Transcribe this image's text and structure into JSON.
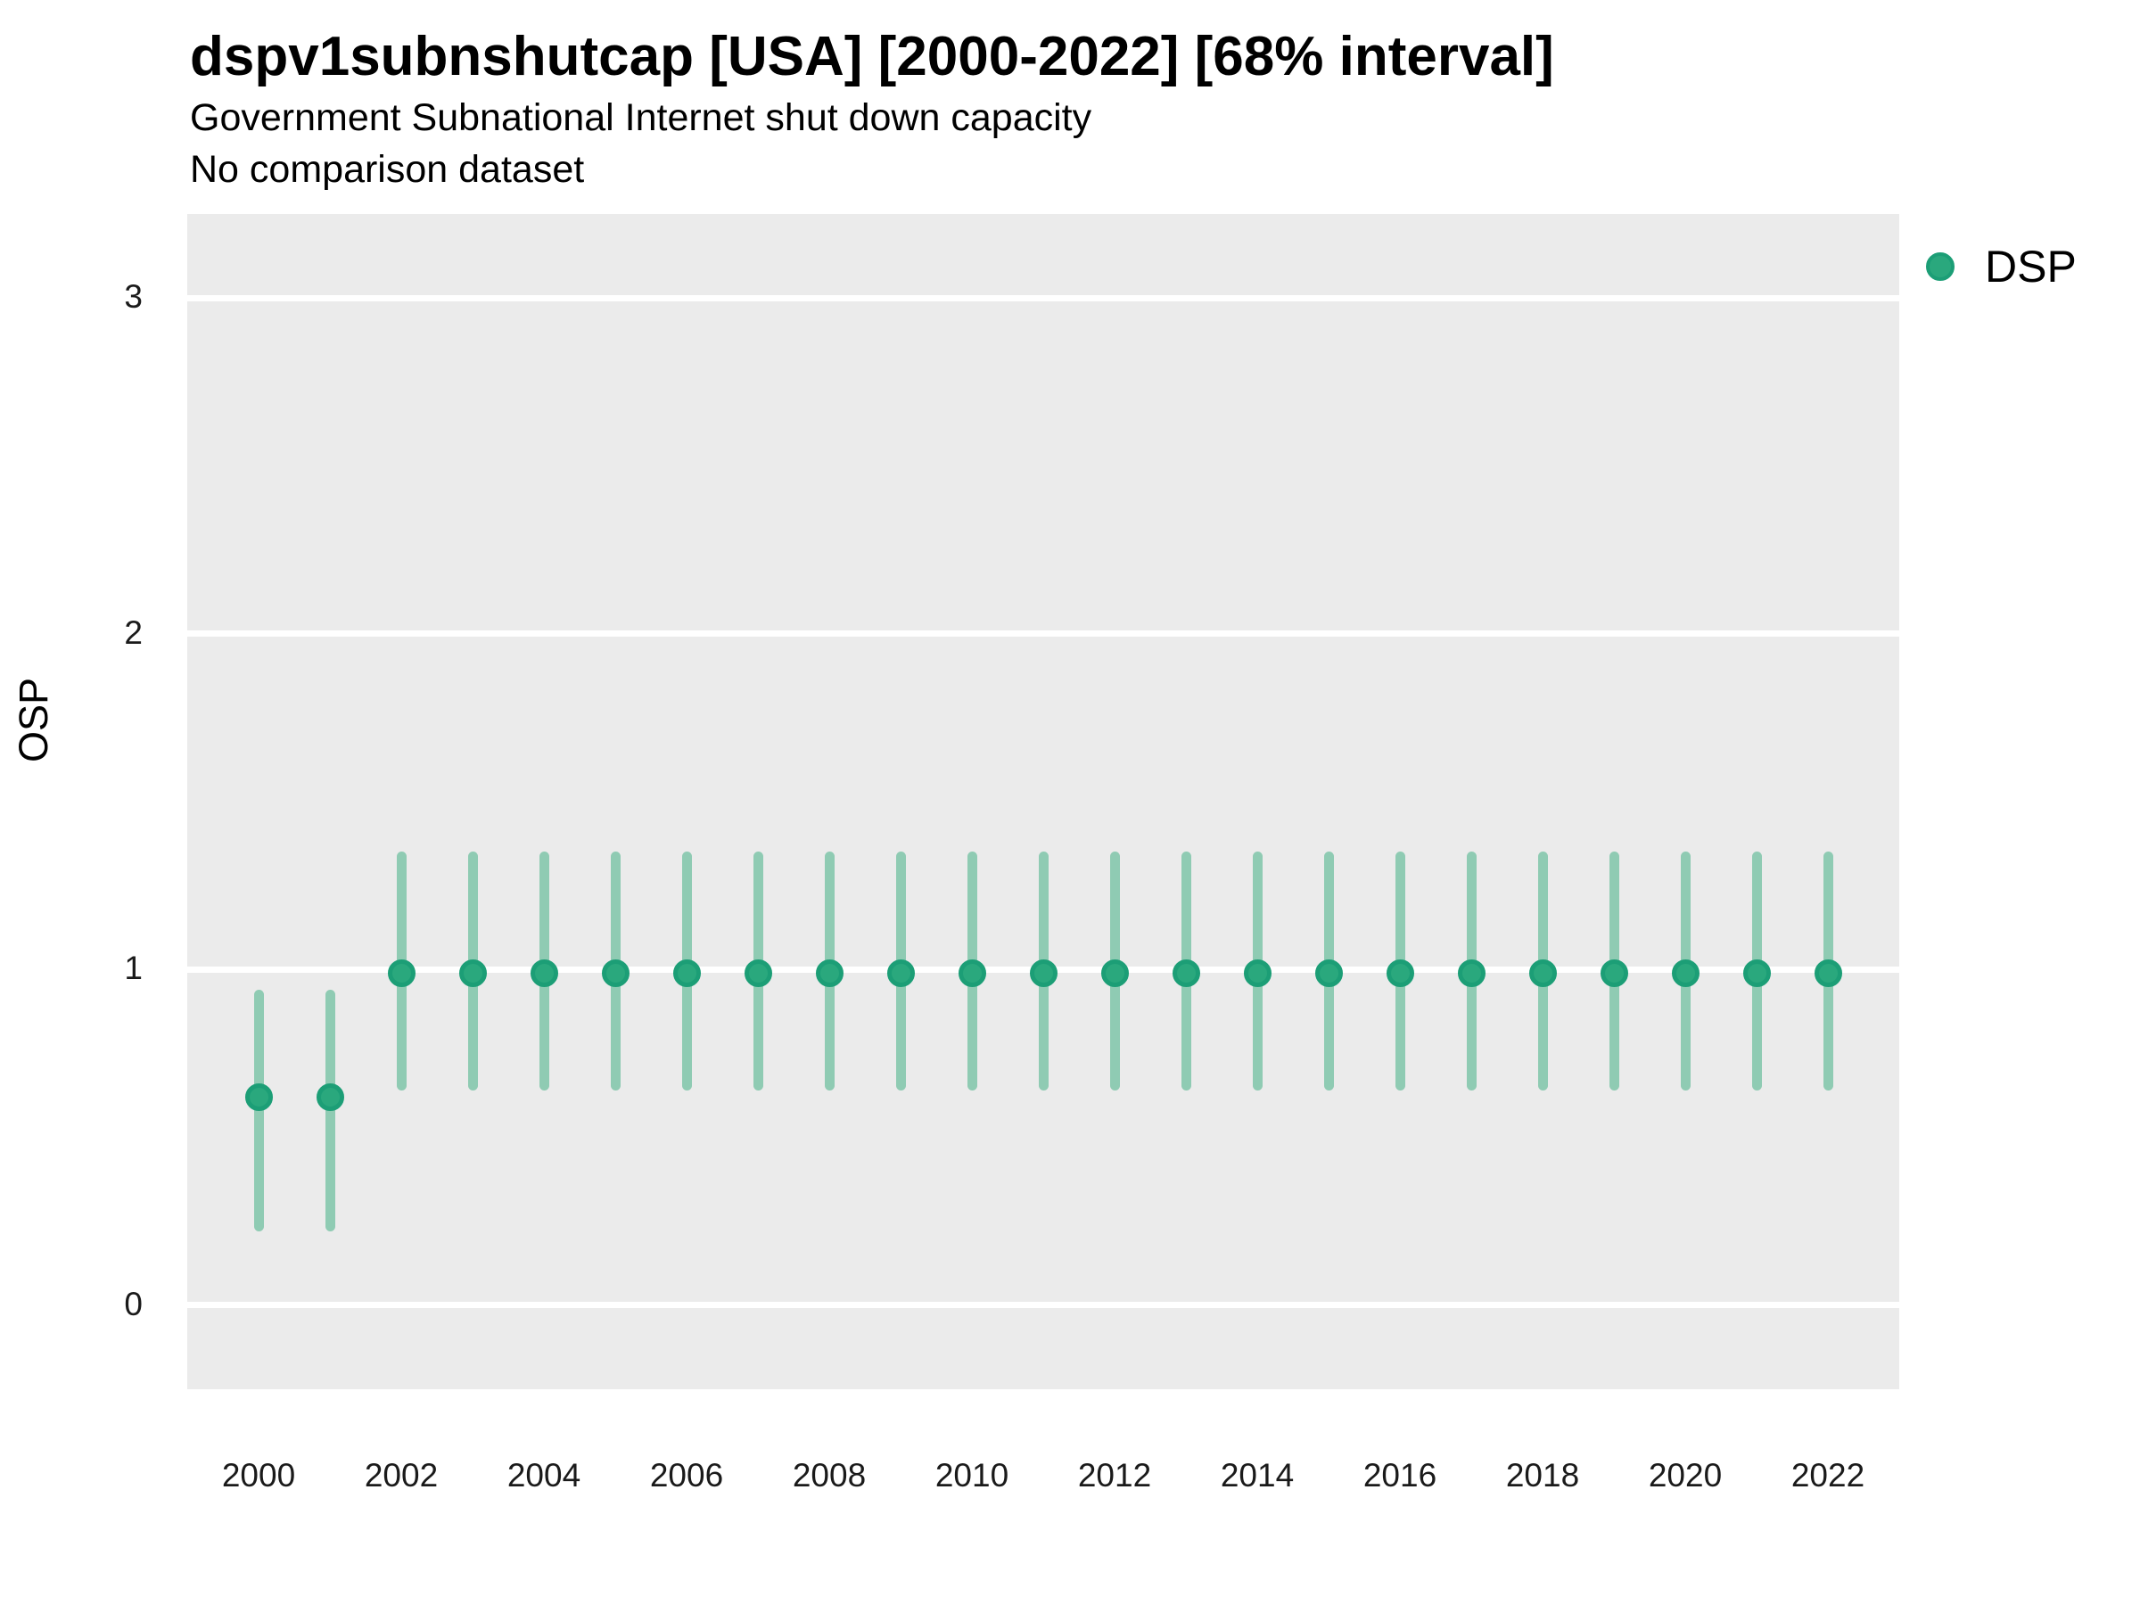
{
  "header": {
    "title": "dspv1subnshutcap [USA] [2000-2022] [68% interval]",
    "subtitle": "Government Subnational Internet shut down capacity",
    "note": "No comparison dataset"
  },
  "colors": {
    "panel_bg": "#EBEBEB",
    "gridline": "#FFFFFF",
    "interval_bar": "#8FCBB3",
    "point_fill": "#2AA87D",
    "point_stroke": "#1C9E76"
  },
  "legend": {
    "label": "DSP",
    "position": "right"
  },
  "chart_data": {
    "type": "scatter",
    "subtype": "pointrange",
    "title": "dspv1subnshutcap [USA] [2000-2022] [68% interval]",
    "subtitle": "Government Subnational Internet shut down capacity",
    "note": "No comparison dataset",
    "interval": "68%",
    "xlabel": "",
    "ylabel": "OSP",
    "ylim": [
      0,
      3
    ],
    "yticks": [
      0,
      1,
      2,
      3
    ],
    "xticks": [
      2000,
      2002,
      2004,
      2006,
      2008,
      2010,
      2012,
      2014,
      2016,
      2018,
      2020,
      2022
    ],
    "grid": "horizontal-only",
    "legend_position": "right",
    "series": [
      {
        "name": "DSP",
        "points": [
          {
            "year": 2000,
            "est": 0.62,
            "lo": 0.22,
            "hi": 0.94
          },
          {
            "year": 2001,
            "est": 0.62,
            "lo": 0.22,
            "hi": 0.94
          },
          {
            "year": 2002,
            "est": 0.99,
            "lo": 0.64,
            "hi": 1.35
          },
          {
            "year": 2003,
            "est": 0.99,
            "lo": 0.64,
            "hi": 1.35
          },
          {
            "year": 2004,
            "est": 0.99,
            "lo": 0.64,
            "hi": 1.35
          },
          {
            "year": 2005,
            "est": 0.99,
            "lo": 0.64,
            "hi": 1.35
          },
          {
            "year": 2006,
            "est": 0.99,
            "lo": 0.64,
            "hi": 1.35
          },
          {
            "year": 2007,
            "est": 0.99,
            "lo": 0.64,
            "hi": 1.35
          },
          {
            "year": 2008,
            "est": 0.99,
            "lo": 0.64,
            "hi": 1.35
          },
          {
            "year": 2009,
            "est": 0.99,
            "lo": 0.64,
            "hi": 1.35
          },
          {
            "year": 2010,
            "est": 0.99,
            "lo": 0.64,
            "hi": 1.35
          },
          {
            "year": 2011,
            "est": 0.99,
            "lo": 0.64,
            "hi": 1.35
          },
          {
            "year": 2012,
            "est": 0.99,
            "lo": 0.64,
            "hi": 1.35
          },
          {
            "year": 2013,
            "est": 0.99,
            "lo": 0.64,
            "hi": 1.35
          },
          {
            "year": 2014,
            "est": 0.99,
            "lo": 0.64,
            "hi": 1.35
          },
          {
            "year": 2015,
            "est": 0.99,
            "lo": 0.64,
            "hi": 1.35
          },
          {
            "year": 2016,
            "est": 0.99,
            "lo": 0.64,
            "hi": 1.35
          },
          {
            "year": 2017,
            "est": 0.99,
            "lo": 0.64,
            "hi": 1.35
          },
          {
            "year": 2018,
            "est": 0.99,
            "lo": 0.64,
            "hi": 1.35
          },
          {
            "year": 2019,
            "est": 0.99,
            "lo": 0.64,
            "hi": 1.35
          },
          {
            "year": 2020,
            "est": 0.99,
            "lo": 0.64,
            "hi": 1.35
          },
          {
            "year": 2021,
            "est": 0.99,
            "lo": 0.64,
            "hi": 1.35
          },
          {
            "year": 2022,
            "est": 0.99,
            "lo": 0.64,
            "hi": 1.35
          }
        ]
      }
    ]
  }
}
